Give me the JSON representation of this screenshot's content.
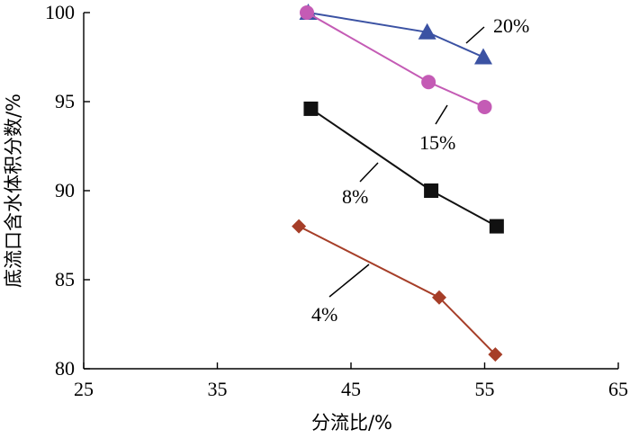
{
  "chart_data": {
    "type": "line",
    "xlabel": "分流比/%",
    "ylabel": "底流口含水体积分数/%",
    "xlim": [
      25,
      65
    ],
    "ylim": [
      80,
      100
    ],
    "xticks": [
      25,
      35,
      45,
      55,
      65
    ],
    "yticks": [
      80,
      85,
      90,
      95,
      100
    ],
    "grid": false,
    "series": [
      {
        "name": "20%",
        "marker": "triangle",
        "color": "#3b52a3",
        "x": [
          41.8,
          50.7,
          54.9
        ],
        "y": [
          100,
          98.9,
          97.5
        ]
      },
      {
        "name": "15%",
        "marker": "circle",
        "color": "#c45bb5",
        "x": [
          41.7,
          50.8,
          55.0
        ],
        "y": [
          100,
          96.1,
          94.7
        ]
      },
      {
        "name": "8%",
        "marker": "square",
        "color": "#111111",
        "x": [
          42.0,
          51.0,
          55.9
        ],
        "y": [
          94.6,
          90.0,
          88.0
        ]
      },
      {
        "name": "4%",
        "marker": "diamond",
        "color": "#a63e28",
        "x": [
          41.1,
          51.6,
          55.8
        ],
        "y": [
          88.0,
          84.0,
          80.8
        ]
      }
    ]
  }
}
